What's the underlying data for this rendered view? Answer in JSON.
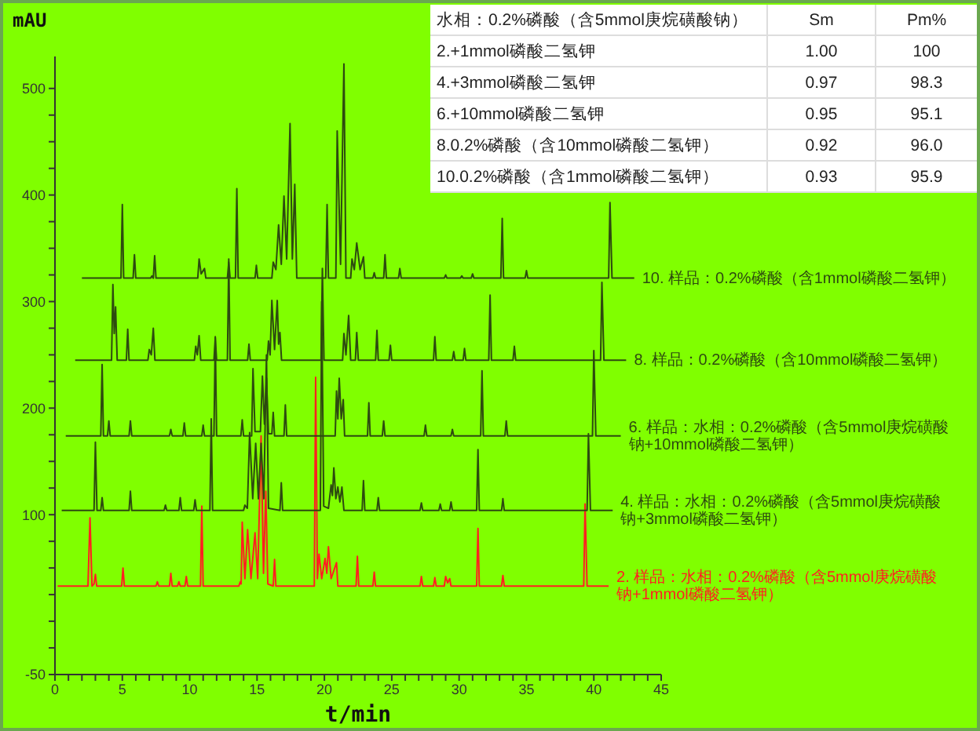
{
  "chart_data": [
    {
      "type": "line",
      "xlabel": "t/min",
      "ylabel": "mAU",
      "xlim": [
        0,
        45
      ],
      "ylim": [
        -50,
        530
      ],
      "xticks": [
        0,
        {
          "value": 1,
          "label": null
        },
        {
          "value": 2,
          "label": null
        },
        {
          "value": 3,
          "label": null
        },
        {
          "value": 4,
          "label": null
        },
        5,
        {
          "value": 6,
          "label": null
        },
        {
          "value": 7,
          "label": null
        },
        {
          "value": 8,
          "label": null
        },
        {
          "value": 9,
          "label": null
        },
        10,
        {
          "value": 11,
          "label": null
        },
        {
          "value": 12,
          "label": null
        },
        {
          "value": 13,
          "label": null
        },
        {
          "value": 14,
          "label": null
        },
        15,
        {
          "value": 16,
          "label": null
        },
        {
          "value": 17,
          "label": null
        },
        {
          "value": 18,
          "label": null
        },
        {
          "value": 19,
          "label": null
        },
        20,
        {
          "value": 21,
          "label": null
        },
        {
          "value": 22,
          "label": null
        },
        {
          "value": 23,
          "label": null
        },
        {
          "value": 24,
          "label": null
        },
        25,
        {
          "value": 26,
          "label": null
        },
        {
          "value": 27,
          "label": null
        },
        {
          "value": 28,
          "label": null
        },
        {
          "value": 29,
          "label": null
        },
        30,
        {
          "value": 31,
          "label": null
        },
        {
          "value": 32,
          "label": null
        },
        {
          "value": 33,
          "label": null
        },
        {
          "value": 34,
          "label": null
        },
        35,
        {
          "value": 36,
          "label": null
        },
        {
          "value": 37,
          "label": null
        },
        {
          "value": 38,
          "label": null
        },
        {
          "value": 39,
          "label": null
        },
        40,
        {
          "value": 41,
          "label": null
        },
        {
          "value": 42,
          "label": null
        },
        {
          "value": 43,
          "label": null
        },
        {
          "value": 44,
          "label": null
        },
        45
      ],
      "yticks": [
        -50,
        {
          "value": -25,
          "label": null
        },
        {
          "value": 0,
          "label": null
        },
        {
          "value": 25,
          "label": null
        },
        {
          "value": 50,
          "label": null
        },
        {
          "value": 75,
          "label": null
        },
        100,
        {
          "value": 125,
          "label": null
        },
        {
          "value": 150,
          "label": null
        },
        {
          "value": 175,
          "label": null
        },
        200,
        {
          "value": 225,
          "label": null
        },
        {
          "value": 250,
          "label": null
        },
        {
          "value": 275,
          "label": null
        },
        300,
        {
          "value": 325,
          "label": null
        },
        {
          "value": 350,
          "label": null
        },
        {
          "value": 375,
          "label": null
        },
        400,
        {
          "value": 425,
          "label": null
        },
        {
          "value": 450,
          "label": null
        },
        {
          "value": 475,
          "label": null
        },
        500
      ],
      "line_style": "solid",
      "series": [
        {
          "name": "2. 样品：水相：0.2%磷酸（含5mmol庚烷磺酸钠+1mmol磷酸二氢钾）",
          "color": "#ff2020",
          "x": [
            0.2,
            2.45,
            2.6,
            2.75,
            2.9,
            3.0,
            3.1,
            4.95,
            5.05,
            5.15,
            7.5,
            7.6,
            7.7,
            8.5,
            8.6,
            8.7,
            9.1,
            9.2,
            9.3,
            9.65,
            9.75,
            9.85,
            10.8,
            10.9,
            11.0,
            13.65,
            13.75,
            13.82,
            13.9,
            14.1,
            14.3,
            14.55,
            14.85,
            15.05,
            15.3,
            15.48,
            15.65,
            15.8,
            16.2,
            16.3,
            16.4,
            19.25,
            19.35,
            19.48,
            19.6,
            19.8,
            20.05,
            20.18,
            20.3,
            20.5,
            20.9,
            21.0,
            22.35,
            22.45,
            22.55,
            23.6,
            23.7,
            23.8,
            27.1,
            27.2,
            27.3,
            28.1,
            28.2,
            28.3,
            28.9,
            29.0,
            29.15,
            29.3,
            29.4,
            31.3,
            31.4,
            31.5,
            33.15,
            33.25,
            33.35,
            39.25,
            39.35,
            39.5,
            41.1
          ],
          "values": [
            33,
            33,
            97,
            33,
            35,
            44,
            33,
            33,
            50,
            33,
            33,
            37,
            33,
            33,
            45,
            33,
            33,
            37,
            33,
            33,
            42,
            33,
            33,
            108,
            33,
            33,
            37,
            35,
            93,
            40,
            86,
            40,
            83,
            40,
            174,
            45,
            122,
            35,
            33,
            58,
            33,
            33,
            229,
            40,
            63,
            40,
            59,
            45,
            70,
            40,
            55,
            33,
            33,
            61,
            33,
            33,
            46,
            33,
            33,
            42,
            33,
            33,
            41,
            33,
            33,
            42,
            36,
            40,
            33,
            33,
            87,
            33,
            33,
            43,
            33,
            33,
            110,
            33,
            33
          ]
        },
        {
          "name": "4. 样品：水相：0.2%磷酸（含5mmol庚烷磺酸钠+3mmol磷酸二氢钾）",
          "color": "#2d4a10",
          "x": [
            0.5,
            2.9,
            3.0,
            3.12,
            3.4,
            3.5,
            3.6,
            5.5,
            5.6,
            5.7,
            8.1,
            8.2,
            8.3,
            9.2,
            9.3,
            9.4,
            10.3,
            10.4,
            10.5,
            11.5,
            11.6,
            11.7,
            14.0,
            14.1,
            14.28,
            14.45,
            14.68,
            14.9,
            15.1,
            15.3,
            15.5,
            15.7,
            15.85,
            16.7,
            16.8,
            16.9,
            19.7,
            19.8,
            19.95,
            20.3,
            20.5,
            20.6,
            20.7,
            20.85,
            21.0,
            21.15,
            21.3,
            21.45,
            22.8,
            22.9,
            23.0,
            23.9,
            24.0,
            24.1,
            27.1,
            27.2,
            27.3,
            28.5,
            28.6,
            28.7,
            29.3,
            29.4,
            29.5,
            31.3,
            31.4,
            31.5,
            33.15,
            33.25,
            33.35,
            39.5,
            39.6,
            39.75,
            41.4
          ],
          "values": [
            104,
            104,
            168,
            104,
            104,
            116,
            104,
            104,
            122,
            104,
            104,
            109,
            104,
            104,
            116,
            104,
            104,
            114,
            104,
            104,
            190,
            104,
            104,
            109,
            106,
            177,
            115,
            167,
            115,
            167,
            115,
            250,
            106,
            104,
            130,
            104,
            104,
            300,
            108,
            106,
            128,
            118,
            144,
            115,
            126,
            112,
            126,
            104,
            104,
            132,
            104,
            104,
            116,
            104,
            104,
            111,
            104,
            104,
            110,
            104,
            104,
            112,
            104,
            104,
            161,
            104,
            104,
            115,
            104,
            104,
            176,
            104,
            104
          ]
        },
        {
          "name": "6. 样品：水相：0.2%磷酸（含5mmol庚烷磺酸钠+10mmol磷酸二氢钾）",
          "color": "#2d4a10",
          "x": [
            0.8,
            3.4,
            3.5,
            3.6,
            3.9,
            4.0,
            4.1,
            5.5,
            5.6,
            5.7,
            8.5,
            8.6,
            8.7,
            9.5,
            9.6,
            9.7,
            10.9,
            11.0,
            11.1,
            11.8,
            11.9,
            12.0,
            13.8,
            13.9,
            14.0,
            14.6,
            14.7,
            14.85,
            15.25,
            15.4,
            15.55,
            15.7,
            15.85,
            16.1,
            16.2,
            16.3,
            17.0,
            17.1,
            17.2,
            20.8,
            20.9,
            21.0,
            21.1,
            21.25,
            21.4,
            21.5,
            23.2,
            23.3,
            23.4,
            24.3,
            24.4,
            24.5,
            27.4,
            27.5,
            27.6,
            29.4,
            29.5,
            29.6,
            31.6,
            31.7,
            31.8,
            33.4,
            33.5,
            33.6,
            39.9,
            40.0,
            40.15,
            42.0
          ],
          "values": [
            174,
            174,
            241,
            174,
            174,
            188,
            174,
            174,
            188,
            174,
            174,
            180,
            174,
            174,
            186,
            174,
            174,
            184,
            174,
            174,
            267,
            174,
            174,
            189,
            174,
            174,
            237,
            178,
            178,
            230,
            185,
            228,
            176,
            176,
            196,
            174,
            174,
            203,
            174,
            174,
            216,
            190,
            228,
            190,
            208,
            174,
            174,
            205,
            174,
            174,
            188,
            174,
            174,
            184,
            174,
            174,
            180,
            174,
            174,
            235,
            174,
            174,
            188,
            174,
            174,
            254,
            174,
            174
          ]
        },
        {
          "name": "8. 样品：0.2%磷酸（含10mmol磷酸二氢钾）",
          "color": "#2d4a10",
          "x": [
            1.5,
            4.2,
            4.3,
            4.4,
            4.5,
            4.62,
            5.3,
            5.4,
            5.5,
            6.9,
            7.0,
            7.15,
            7.3,
            7.42,
            10.35,
            10.45,
            10.57,
            10.7,
            10.82,
            11.8,
            11.9,
            12.0,
            12.8,
            12.9,
            13.0,
            14.3,
            14.4,
            14.5,
            15.75,
            15.85,
            15.97,
            16.1,
            16.3,
            16.5,
            16.6,
            16.7,
            16.82,
            19.75,
            19.85,
            19.97,
            21.35,
            21.45,
            21.6,
            21.8,
            21.95,
            22.3,
            22.4,
            22.52,
            23.8,
            23.9,
            24.0,
            24.8,
            24.9,
            25.0,
            28.1,
            28.2,
            28.3,
            29.5,
            29.6,
            29.7,
            30.3,
            30.4,
            30.5,
            32.2,
            32.3,
            32.4,
            34.0,
            34.1,
            34.2,
            40.5,
            40.6,
            40.75,
            42.4
          ],
          "values": [
            245,
            245,
            316,
            270,
            295,
            245,
            245,
            274,
            245,
            245,
            255,
            250,
            275,
            245,
            245,
            258,
            250,
            268,
            245,
            245,
            266,
            245,
            245,
            340,
            245,
            245,
            260,
            245,
            245,
            263,
            250,
            301,
            255,
            301,
            260,
            271,
            245,
            245,
            331,
            245,
            245,
            270,
            250,
            287,
            245,
            245,
            271,
            245,
            245,
            273,
            245,
            245,
            259,
            245,
            245,
            267,
            245,
            245,
            253,
            245,
            245,
            256,
            245,
            245,
            306,
            245,
            245,
            258,
            245,
            245,
            318,
            245,
            245
          ]
        },
        {
          "name": "10. 样品：0.2%磷酸（含1mmol磷酸二氢钾）",
          "color": "#2d4a10",
          "x": [
            2.0,
            4.9,
            5.0,
            5.1,
            5.8,
            5.9,
            6.0,
            7.1,
            7.2,
            7.3,
            7.4,
            7.5,
            10.6,
            10.7,
            10.85,
            11.1,
            11.2,
            12.8,
            12.9,
            13.0,
            13.4,
            13.5,
            13.6,
            14.85,
            14.95,
            15.05,
            16.1,
            16.2,
            16.4,
            16.6,
            16.8,
            17.0,
            17.2,
            17.45,
            17.62,
            17.8,
            17.95,
            20.1,
            20.2,
            20.3,
            20.85,
            20.95,
            21.2,
            21.45,
            21.6,
            21.95,
            22.05,
            22.22,
            22.4,
            22.65,
            22.9,
            23.0,
            23.6,
            23.7,
            23.8,
            24.4,
            24.5,
            24.6,
            25.5,
            25.6,
            25.7,
            28.9,
            29.0,
            29.1,
            30.1,
            30.2,
            30.3,
            30.9,
            31.0,
            31.1,
            33.1,
            33.2,
            33.3,
            34.9,
            35.0,
            35.1,
            41.1,
            41.2,
            41.35,
            43.0
          ],
          "values": [
            322,
            322,
            391,
            322,
            322,
            344,
            322,
            322,
            324,
            322,
            343,
            322,
            322,
            340,
            326,
            331,
            322,
            322,
            337,
            322,
            322,
            406,
            322,
            322,
            334,
            322,
            322,
            337,
            330,
            372,
            335,
            399,
            340,
            467,
            340,
            410,
            322,
            322,
            391,
            322,
            322,
            460,
            335,
            523,
            322,
            322,
            340,
            330,
            355,
            330,
            342,
            322,
            322,
            327,
            322,
            322,
            344,
            322,
            322,
            331,
            322,
            322,
            325,
            322,
            322,
            324,
            322,
            322,
            326,
            322,
            322,
            378,
            322,
            322,
            329,
            322,
            322,
            393,
            322,
            322
          ]
        }
      ]
    },
    {
      "type": "other",
      "title": "水相：0.2%磷酸（含5mmol庚烷磺酸钠）",
      "categories": [
        "2.+1mmol磷酸二氢钾",
        "4.+3mmol磷酸二氢钾",
        "6.+10mmol磷酸二氢钾",
        "8.0.2%磷酸（含10mmol磷酸二氢钾）",
        "10.0.2%磷酸（含1mmol磷酸二氢钾）"
      ],
      "series": [
        {
          "name": "Sm",
          "values": [
            1.0,
            0.97,
            0.95,
            0.92,
            0.93
          ],
          "value_labels": [
            "1.00",
            "0.97",
            "0.95",
            "0.92",
            "0.93"
          ]
        },
        {
          "name": "Pm%",
          "values": [
            100,
            98.3,
            95.1,
            96.0,
            95.9
          ],
          "value_labels": [
            "100",
            "98.3",
            "95.1",
            "96.0",
            "95.9"
          ]
        }
      ]
    }
  ]
}
